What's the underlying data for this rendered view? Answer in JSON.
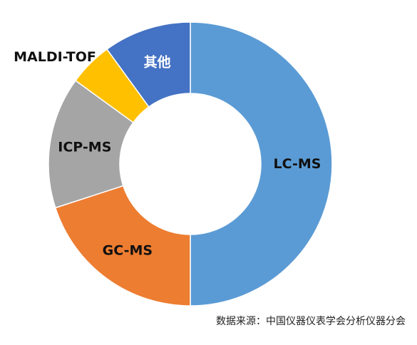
{
  "chart_data": {
    "type": "pie",
    "donut": true,
    "categories": [
      "LC-MS",
      "GC-MS",
      "ICP-MS",
      "MALDI-TOF",
      "其他"
    ],
    "values": [
      50,
      20,
      15,
      5,
      10
    ],
    "colors": [
      "#5B9BD5",
      "#ED7D31",
      "#A5A5A5",
      "#FFC000",
      "#4472C4"
    ],
    "label_colors": [
      "#111111",
      "#111111",
      "#111111",
      "#111111",
      "#ffffff"
    ],
    "start_angle_deg": 0,
    "direction": "clockwise",
    "legend": "none"
  },
  "source_note": "数据来源：中国仪器仪表学会分析仪器分会"
}
